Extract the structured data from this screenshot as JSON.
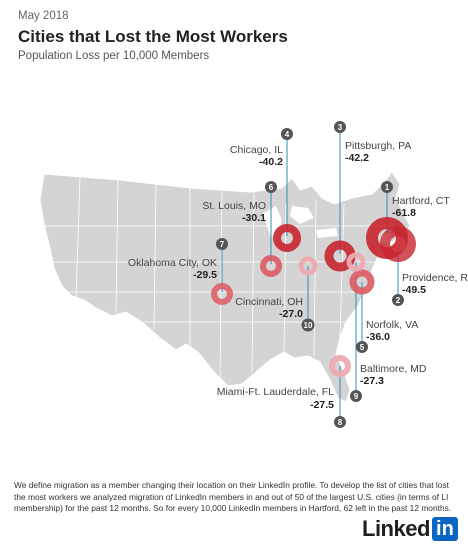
{
  "header": {
    "date": "May 2018",
    "title": "Cities that Lost the Most Workers",
    "subtitle": "Population Loss per 10,000 Members"
  },
  "colors": {
    "land": "#d4d4d4",
    "border": "#ffffff",
    "ring_dark": "#c8252f",
    "ring_mid": "#dd5a63",
    "ring_light": "#eeaab0",
    "badge": "#555555",
    "leader": "#2e8bbf"
  },
  "cities": [
    {
      "rank": "1",
      "name": "Hartford, CT",
      "value": "-61.8"
    },
    {
      "rank": "2",
      "name": "Providence, RI",
      "value": "-49.5"
    },
    {
      "rank": "3",
      "name": "Pittsburgh, PA",
      "value": "-42.2"
    },
    {
      "rank": "4",
      "name": "Chicago, IL",
      "value": "-40.2"
    },
    {
      "rank": "5",
      "name": "Norfolk, VA",
      "value": "-36.0"
    },
    {
      "rank": "6",
      "name": "St. Louis, MO",
      "value": "-30.1"
    },
    {
      "rank": "7",
      "name": "Oklahoma City, OK",
      "value": "-29.5"
    },
    {
      "rank": "8",
      "name": "Miami-Ft. Lauderdale, FL",
      "value": "-27.5"
    },
    {
      "rank": "9",
      "name": "Baltimore, MD",
      "value": "-27.3"
    },
    {
      "rank": "10",
      "name": "Cincinnati, OH",
      "value": "-27.0"
    }
  ],
  "footnote": "We define migration as a member changing their location on their LinkedIn profile. To develop the list of cities that lost the most workers we analyzed migration of LinkedIn members in and out of 50 of the largest U.S. cities (in terms of LI membership) for the past 12 months. So for every 10,000 LinkedIn members in Hartford, 62 left in the past 12 months.",
  "logo": {
    "text": "Linked",
    "box": "in"
  }
}
